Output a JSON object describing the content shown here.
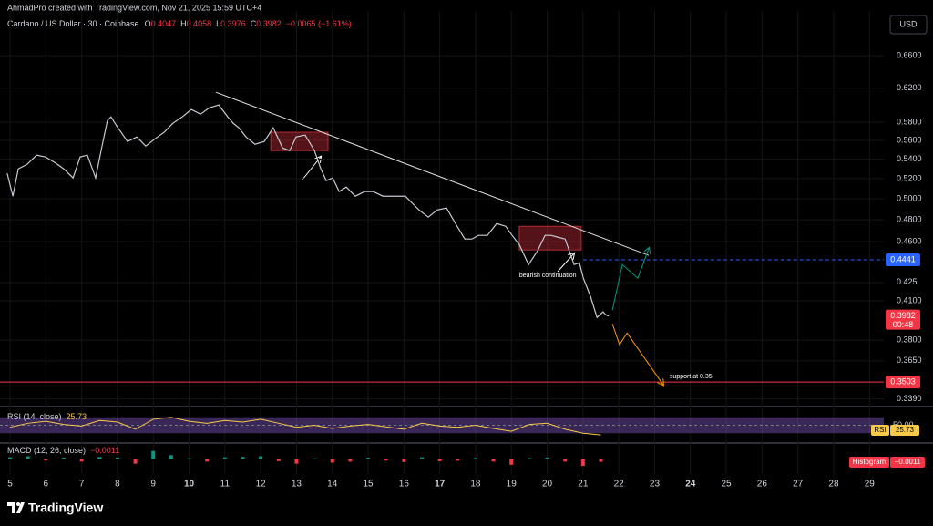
{
  "header": {
    "attribution": "AhmadPro created with TradingView.com, Nov 21, 2025 15:59 UTC+4",
    "symbol": "Cardano / US Dollar · 30 · Coinbase",
    "ohlc": [
      {
        "label": "O",
        "value": 0.4047
      },
      {
        "label": "H",
        "value": 0.4058
      },
      {
        "label": "L",
        "value": 0.3976
      },
      {
        "label": "C",
        "value": 0.3982
      }
    ],
    "change": "−0.0065 (−1.61%)",
    "currency": "USD"
  },
  "chart_data": {
    "type": "line",
    "log_scale": true,
    "grid": true,
    "color": "#c7cad1",
    "x": [
      4.92,
      5.08,
      5.23,
      5.48,
      5.74,
      5.99,
      6.25,
      6.5,
      6.76,
      6.96,
      7.16,
      7.39,
      7.57,
      7.72,
      7.82,
      7.98,
      8.28,
      8.54,
      8.79,
      9.05,
      9.3,
      9.55,
      9.81,
      10.06,
      10.32,
      10.57,
      10.83,
      11.08,
      11.23,
      11.39,
      11.59,
      11.84,
      12.1,
      12.35,
      12.61,
      12.81,
      12.99,
      13.24,
      13.5,
      13.68,
      13.83,
      14.01,
      14.19,
      14.39,
      14.64,
      14.9,
      15.15,
      15.41,
      15.71,
      16.04,
      16.42,
      16.68,
      16.93,
      17.19,
      17.44,
      17.7,
      17.9,
      18.08,
      18.33,
      18.59,
      18.84,
      19.02,
      19.22,
      19.48,
      19.73,
      19.94,
      20.11,
      20.29,
      20.5,
      20.75,
      20.9,
      21.01,
      21.21,
      21.39,
      21.56,
      21.64,
      21.72
    ],
    "values": [
      0.5253,
      0.5025,
      0.5299,
      0.5347,
      0.5442,
      0.5423,
      0.5365,
      0.5299,
      0.5207,
      0.5423,
      0.5442,
      0.5207,
      0.5539,
      0.5821,
      0.5862,
      0.5759,
      0.5588,
      0.5638,
      0.5539,
      0.5618,
      0.5688,
      0.579,
      0.5862,
      0.5946,
      0.5893,
      0.5967,
      0.5998,
      0.5862,
      0.579,
      0.5739,
      0.5638,
      0.5559,
      0.5588,
      0.5739,
      0.5519,
      0.549,
      0.5638,
      0.5658,
      0.549,
      0.5299,
      0.5179,
      0.5207,
      0.507,
      0.5115,
      0.5025,
      0.507,
      0.507,
      0.5025,
      0.5025,
      0.5025,
      0.4893,
      0.4825,
      0.4893,
      0.4911,
      0.4765,
      0.4624,
      0.4624,
      0.4657,
      0.4657,
      0.4765,
      0.474,
      0.4657,
      0.4575,
      0.44,
      0.4519,
      0.4657,
      0.4657,
      0.4641,
      0.4624,
      0.44,
      0.4416,
      0.4285,
      0.4136,
      0.3971,
      0.4014,
      0.399,
      0.3982
    ],
    "xlim": [
      4.72,
      29.4
    ],
    "xticks": [
      5,
      6,
      7,
      8,
      9,
      10,
      11,
      12,
      13,
      14,
      15,
      16,
      17,
      18,
      19,
      20,
      21,
      22,
      23,
      24,
      25,
      26,
      27,
      28,
      29
    ],
    "ylim": [
      0.3346,
      0.72
    ],
    "yticks": [
      {
        "value": 0.66,
        "label": "0.6600"
      },
      {
        "value": 0.62,
        "label": "0.6200"
      },
      {
        "value": 0.58,
        "label": "0.5800"
      },
      {
        "value": 0.56,
        "label": "0.5600"
      },
      {
        "value": 0.54,
        "label": "0.5400"
      },
      {
        "value": 0.52,
        "label": "0.5200"
      },
      {
        "value": 0.5,
        "label": "0.5000"
      },
      {
        "value": 0.48,
        "label": "0.4800"
      },
      {
        "value": 0.46,
        "label": "0.4600"
      },
      0.425,
      {
        "value": 0.41,
        "label": "0.4100"
      },
      {
        "value": 0.38,
        "label": "0.3800"
      },
      {
        "value": 0.365,
        "label": "0.3650"
      },
      {
        "value": 0.339,
        "label": "0.3390"
      }
    ],
    "countdown": "00:48",
    "trendline": {
      "x": [
        10.75,
        22.84
      ],
      "values": [
        0.6149,
        0.4479
      ],
      "color": "#e0e0e0"
    },
    "levels": [
      {
        "value": 0.4441,
        "color": "#2962ff",
        "style": "dashed",
        "x_start": 21.0
      },
      {
        "value": 0.3503,
        "color": "#f23645",
        "style": "solid"
      }
    ],
    "zones": [
      {
        "x": [
          12.28,
          13.88
        ],
        "values": [
          0.569,
          0.549
        ],
        "color": "#f23645"
      },
      {
        "x": [
          19.22,
          20.95
        ],
        "values": [
          0.474,
          0.4527
        ],
        "color": "#f23645"
      }
    ],
    "projections": [
      {
        "color": "#089981",
        "x": [
          21.82,
          22.1,
          22.53,
          22.84
        ],
        "values": [
          0.4028,
          0.44,
          0.4285,
          0.4543
        ]
      },
      {
        "color": "#ff9800",
        "x": [
          21.82,
          22.02,
          22.23,
          23.24
        ],
        "values": [
          0.3922,
          0.3766,
          0.3853,
          0.3484
        ]
      }
    ],
    "annotations": [
      {
        "text": "bearish continuation",
        "x": 19.22,
        "y": 0.4308
      },
      {
        "text": "support at 0.35",
        "x": 23.42,
        "y": 0.354
      }
    ],
    "indicators": {
      "x": [
        5,
        5.5,
        6,
        6.5,
        7,
        7.5,
        8,
        8.5,
        9,
        9.5,
        10,
        10.5,
        11,
        11.5,
        12,
        12.5,
        13,
        13.5,
        14,
        14.5,
        15,
        15.5,
        16,
        16.5,
        17,
        17.5,
        18,
        18.5,
        19,
        19.5,
        20,
        20.5,
        21,
        21.5
      ],
      "rsi": {
        "title": "RSI (14, close)",
        "badge": "RSI",
        "color": "#f7c948",
        "band_color": "#7e57c2",
        "values": [
          45,
          55,
          60,
          52,
          48,
          62,
          58,
          40,
          65,
          70,
          60,
          55,
          62,
          58,
          65,
          55,
          45,
          50,
          42,
          48,
          52,
          46,
          40,
          55,
          48,
          45,
          50,
          42,
          35,
          52,
          55,
          40,
          30,
          25.73
        ],
        "ylim": [
          10,
          90
        ],
        "band": [
          30,
          70
        ],
        "yticks": [
          {
            "value": 50,
            "label": "50.00"
          }
        ]
      },
      "macd": {
        "title": "MACD (12, 26, close)",
        "badge": "Histogram",
        "last_value_label": "−0.0011",
        "values": [
          0.001,
          0.0015,
          -0.0005,
          0.0008,
          -0.001,
          0.0012,
          0.0009,
          -0.002,
          0.004,
          0.002,
          0.0005,
          -0.001,
          0.001,
          0.0012,
          0.0015,
          -0.0008,
          -0.002,
          0.0005,
          -0.0015,
          -0.001,
          0.0008,
          -0.0005,
          -0.0012,
          0.001,
          -0.0008,
          -0.0006,
          0.0007,
          -0.001,
          -0.0025,
          0.0006,
          0.0009,
          -0.001,
          -0.003,
          -0.0011
        ],
        "ylim": [
          -0.006,
          0.006
        ],
        "up_color": "#089981",
        "down_color": "#f23645"
      }
    }
  },
  "footer": {
    "brand": "TradingView"
  }
}
